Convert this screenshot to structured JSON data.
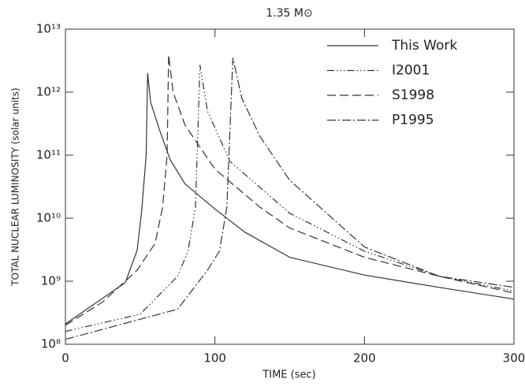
{
  "chart_data": {
    "type": "line",
    "title": "1.35 M⊙",
    "xlabel": "TIME (sec)",
    "ylabel": "TOTAL NUCLEAR LUMINOSITY (solar units)",
    "xlim": [
      0,
      300
    ],
    "xticks": [
      0,
      100,
      200,
      300
    ],
    "ylim": [
      100000000,
      10000000000000
    ],
    "yscale": "log",
    "yticks": [
      {
        "value": 100000000,
        "label": "10⁸"
      },
      {
        "value": 1000000000,
        "label": "10⁹"
      },
      {
        "value": 10000000000,
        "label": "10¹⁰"
      },
      {
        "value": 100000000000,
        "label": "10¹¹"
      },
      {
        "value": 1000000000000,
        "label": "10¹²"
      },
      {
        "value": 10000000000000,
        "label": "10¹³"
      }
    ],
    "legend": "top-right",
    "series": [
      {
        "name": "This Work",
        "color": "#333333",
        "linestyle": "solid",
        "x": [
          0,
          40,
          48,
          51,
          54,
          55,
          57,
          63,
          70,
          80,
          100,
          120,
          150,
          200,
          250,
          300
        ],
        "values": [
          210000000,
          950000000,
          3100000000,
          13000000000,
          100000000000,
          2000000000000,
          690000000000,
          250000000000,
          85000000000,
          35000000000,
          14000000000,
          6000000000,
          2400000000,
          1250000000,
          800000000,
          520000000
        ]
      },
      {
        "name": "I2001",
        "color": "#333333",
        "linestyle": "dashdotdot",
        "x": [
          0,
          50,
          75,
          82,
          87,
          90,
          95,
          110,
          150,
          200,
          250,
          300
        ],
        "values": [
          160000000,
          300000000,
          1200000000,
          3000000000,
          15000000000,
          2700000000000,
          500000000000,
          80000000000,
          12000000000,
          3000000000,
          1200000000,
          700000000
        ]
      },
      {
        "name": "S1998",
        "color": "#333333",
        "linestyle": "dashed",
        "x": [
          0,
          25,
          48,
          60,
          65,
          68,
          69,
          72,
          80,
          100,
          130,
          150,
          200,
          250,
          300
        ],
        "values": [
          200000000,
          470000000,
          1500000000,
          4000000000,
          15000000000,
          100000000000,
          3900000000000,
          1000000000000,
          300000000000,
          60000000000,
          15000000000,
          7000000000,
          2400000000,
          1200000000,
          650000000
        ]
      },
      {
        "name": "P1995",
        "color": "#333333",
        "linestyle": "dashdot",
        "x": [
          0,
          75,
          95,
          103,
          108,
          112,
          118,
          130,
          150,
          200,
          250,
          300
        ],
        "values": [
          120000000,
          360000000,
          1500000000,
          3000000000,
          15000000000,
          3500000000000,
          800000000000,
          200000000000,
          40000000000,
          3500000000,
          1200000000,
          800000000
        ]
      }
    ]
  }
}
